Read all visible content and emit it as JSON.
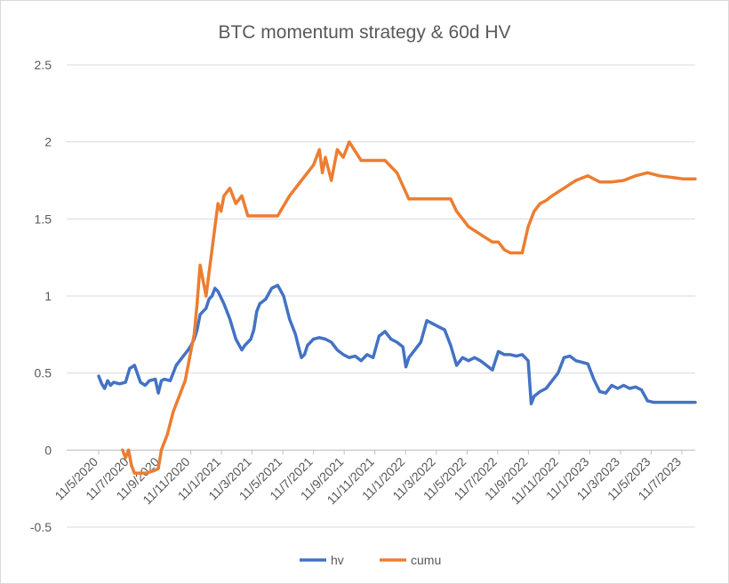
{
  "chart_data": {
    "type": "line",
    "title": "BTC momentum strategy & 60d HV",
    "xlabel": "",
    "ylabel": "",
    "ylim": [
      -0.5,
      2.5
    ],
    "yticks": [
      "2.5",
      "2",
      "1.5",
      "1",
      "0.5",
      "0",
      "-0.5"
    ],
    "xticks": [
      "11/5/2020",
      "11/7/2020",
      "11/9/2020",
      "11/11/2020",
      "11/1/2021",
      "11/3/2021",
      "11/5/2021",
      "11/7/2021",
      "11/9/2021",
      "11/11/2021",
      "11/1/2022",
      "11/3/2022",
      "11/5/2022",
      "11/7/2022",
      "11/9/2022",
      "11/11/2022",
      "11/1/2023",
      "11/3/2023",
      "11/5/2023",
      "11/7/2023"
    ],
    "x_range": [
      0,
      1000
    ],
    "grid": "horizontal",
    "legend_position": "bottom",
    "series": [
      {
        "name": "hv",
        "color": "#4472C4",
        "x": [
          0,
          5,
          10,
          15,
          20,
          25,
          35,
          45,
          52,
          60,
          70,
          78,
          85,
          95,
          100,
          105,
          110,
          120,
          130,
          140,
          150,
          155,
          160,
          165,
          170,
          175,
          180,
          185,
          190,
          195,
          200,
          210,
          220,
          230,
          240,
          245,
          250,
          255,
          260,
          265,
          270,
          280,
          290,
          300,
          310,
          320,
          330,
          335,
          340,
          345,
          350,
          360,
          370,
          380,
          390,
          400,
          410,
          420,
          430,
          440,
          450,
          460,
          470,
          480,
          490,
          500,
          510,
          515,
          520,
          530,
          540,
          550,
          560,
          570,
          580,
          590,
          600,
          610,
          620,
          630,
          640,
          650,
          660,
          670,
          680,
          690,
          700,
          710,
          720,
          725,
          730,
          740,
          750,
          760,
          770,
          780,
          790,
          800,
          810,
          820,
          830,
          840,
          850,
          860,
          870,
          880,
          890,
          900,
          910,
          920,
          930,
          940,
          950,
          960,
          970,
          980,
          990,
          1000
        ],
        "y": [
          0.48,
          0.43,
          0.4,
          0.45,
          0.42,
          0.44,
          0.43,
          0.44,
          0.53,
          0.55,
          0.44,
          0.42,
          0.45,
          0.46,
          0.37,
          0.45,
          0.46,
          0.45,
          0.55,
          0.6,
          0.65,
          0.68,
          0.72,
          0.78,
          0.88,
          0.9,
          0.92,
          0.98,
          1.0,
          1.05,
          1.03,
          0.95,
          0.85,
          0.72,
          0.65,
          0.68,
          0.7,
          0.72,
          0.78,
          0.9,
          0.95,
          0.98,
          1.05,
          1.07,
          1.0,
          0.85,
          0.75,
          0.67,
          0.6,
          0.62,
          0.68,
          0.72,
          0.73,
          0.72,
          0.7,
          0.65,
          0.62,
          0.6,
          0.61,
          0.58,
          0.62,
          0.6,
          0.74,
          0.77,
          0.72,
          0.7,
          0.67,
          0.54,
          0.6,
          0.65,
          0.7,
          0.84,
          0.82,
          0.8,
          0.78,
          0.68,
          0.55,
          0.6,
          0.58,
          0.6,
          0.58,
          0.55,
          0.52,
          0.64,
          0.62,
          0.62,
          0.61,
          0.62,
          0.58,
          0.3,
          0.35,
          0.38,
          0.4,
          0.45,
          0.5,
          0.6,
          0.61,
          0.58,
          0.57,
          0.56,
          0.46,
          0.38,
          0.37,
          0.42,
          0.4,
          0.42,
          0.4,
          0.41,
          0.39,
          0.32,
          0.31,
          0.31,
          0.31,
          0.31,
          0.31,
          0.31,
          0.31,
          0.31
        ]
      },
      {
        "name": "cumu",
        "color": "#ED7D31",
        "x": [
          40,
          45,
          50,
          55,
          60,
          65,
          80,
          95,
          100,
          105,
          115,
          125,
          135,
          140,
          145,
          150,
          155,
          160,
          165,
          170,
          175,
          180,
          185,
          190,
          195,
          200,
          205,
          210,
          220,
          230,
          240,
          250,
          260,
          280,
          300,
          320,
          340,
          360,
          370,
          375,
          380,
          390,
          400,
          410,
          420,
          440,
          460,
          480,
          500,
          520,
          540,
          560,
          570,
          580,
          590,
          600,
          620,
          640,
          660,
          670,
          680,
          690,
          700,
          710,
          720,
          730,
          740,
          750,
          760,
          780,
          800,
          820,
          840,
          860,
          880,
          900,
          920,
          940,
          960,
          980,
          1000
        ],
        "y": [
          0.0,
          -0.05,
          0.0,
          -0.1,
          -0.15,
          -0.15,
          -0.15,
          -0.13,
          -0.12,
          0.0,
          0.1,
          0.25,
          0.35,
          0.4,
          0.45,
          0.55,
          0.65,
          0.75,
          0.95,
          1.2,
          1.1,
          1.0,
          1.15,
          1.3,
          1.45,
          1.6,
          1.55,
          1.65,
          1.7,
          1.6,
          1.65,
          1.52,
          1.52,
          1.52,
          1.52,
          1.65,
          1.75,
          1.85,
          1.95,
          1.8,
          1.9,
          1.75,
          1.95,
          1.9,
          2.0,
          1.88,
          1.88,
          1.88,
          1.8,
          1.63,
          1.63,
          1.63,
          1.63,
          1.63,
          1.63,
          1.55,
          1.45,
          1.4,
          1.35,
          1.35,
          1.3,
          1.28,
          1.28,
          1.28,
          1.45,
          1.55,
          1.6,
          1.62,
          1.65,
          1.7,
          1.75,
          1.78,
          1.74,
          1.74,
          1.75,
          1.78,
          1.8,
          1.78,
          1.77,
          1.76,
          1.76
        ]
      }
    ]
  }
}
